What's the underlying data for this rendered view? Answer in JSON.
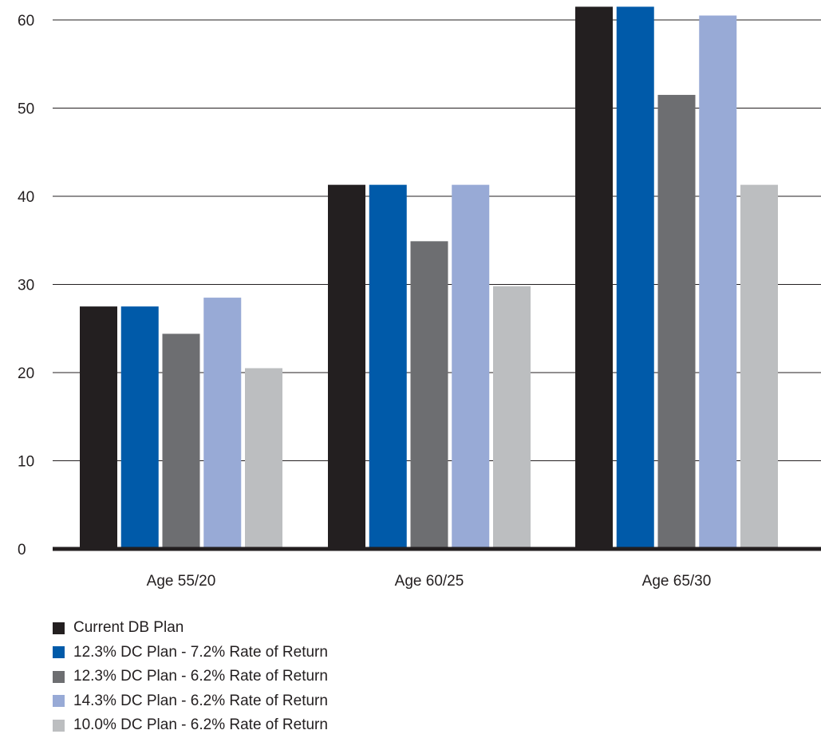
{
  "chart_data": {
    "type": "bar",
    "title": "",
    "xlabel": "",
    "ylabel": "",
    "ylim": [
      0,
      60
    ],
    "yticks": [
      0,
      10,
      20,
      30,
      40,
      50,
      60
    ],
    "grid": true,
    "legend_position": "bottom-left",
    "categories": [
      "Age 55/20",
      "Age 60/25",
      "Age 65/30"
    ],
    "series": [
      {
        "name": "Current DB Plan",
        "color": "#231f20",
        "values": [
          27.5,
          41.3,
          61.5
        ]
      },
      {
        "name": "12.3% DC Plan - 7.2% Rate of Return",
        "color": "#005aa9",
        "values": [
          27.5,
          41.3,
          61.5
        ]
      },
      {
        "name": "12.3% DC Plan - 6.2% Rate of Return",
        "color": "#6d6e71",
        "values": [
          24.4,
          34.9,
          51.5
        ]
      },
      {
        "name": "14.3% DC Plan - 6.2% Rate of Return",
        "color": "#98aad6",
        "values": [
          28.5,
          41.3,
          60.5
        ]
      },
      {
        "name": "10.0% DC Plan - 6.2% Rate of Return",
        "color": "#bcbec0",
        "values": [
          20.5,
          29.8,
          41.3
        ]
      }
    ]
  }
}
